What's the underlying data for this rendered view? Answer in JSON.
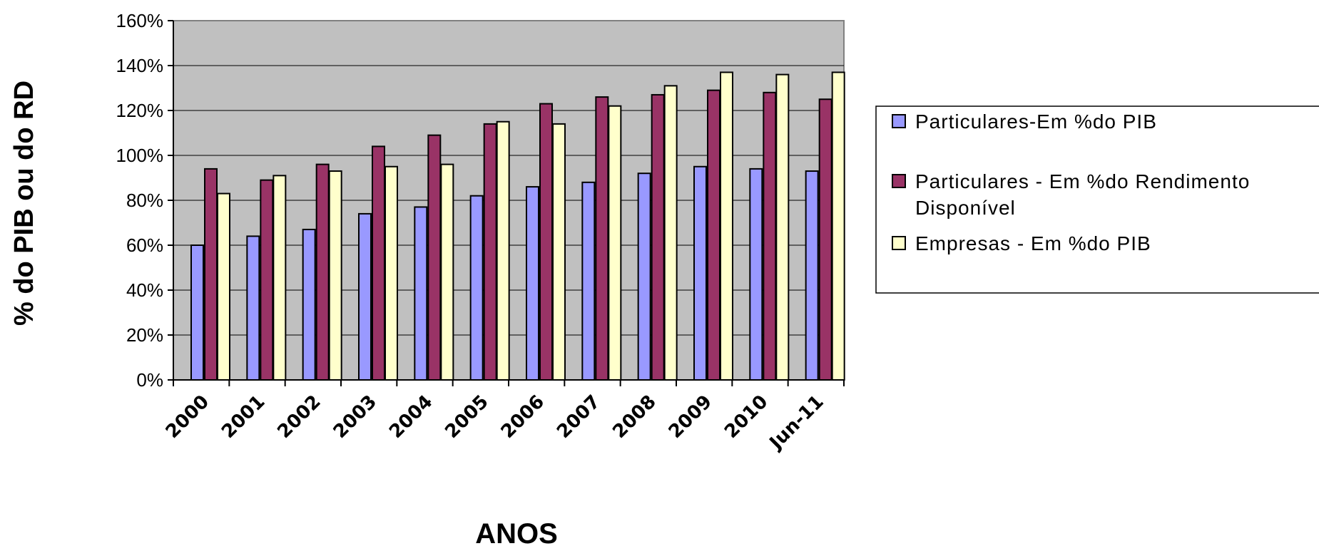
{
  "chart_data": {
    "type": "bar",
    "title": "",
    "xlabel": "ANOS",
    "ylabel": "% do PIB ou do RD",
    "ylim": [
      0,
      160
    ],
    "y_ticks": [
      "0%",
      "20%",
      "40%",
      "60%",
      "80%",
      "100%",
      "120%",
      "140%",
      "160%"
    ],
    "categories": [
      "2000",
      "2001",
      "2002",
      "2003",
      "2004",
      "2005",
      "2006",
      "2007",
      "2008",
      "2009",
      "2010",
      "Jun-11"
    ],
    "series": [
      {
        "name": "Particulares-Em %do PIB",
        "values": [
          60,
          64,
          67,
          74,
          77,
          82,
          86,
          88,
          92,
          95,
          94,
          93
        ]
      },
      {
        "name": "Particulares - Em %do Rendimento Disponível",
        "values": [
          94,
          89,
          96,
          104,
          109,
          114,
          123,
          126,
          127,
          129,
          128,
          125
        ]
      },
      {
        "name": "Empresas - Em %do PIB",
        "values": [
          83,
          91,
          93,
          95,
          96,
          115,
          114,
          122,
          131,
          137,
          136,
          137
        ]
      }
    ],
    "grid": true,
    "legend_position": "right",
    "colors": {
      "plot_background": "#c0c0c0",
      "series": [
        "#9999ff",
        "#993366",
        "#ffffcc"
      ]
    }
  }
}
